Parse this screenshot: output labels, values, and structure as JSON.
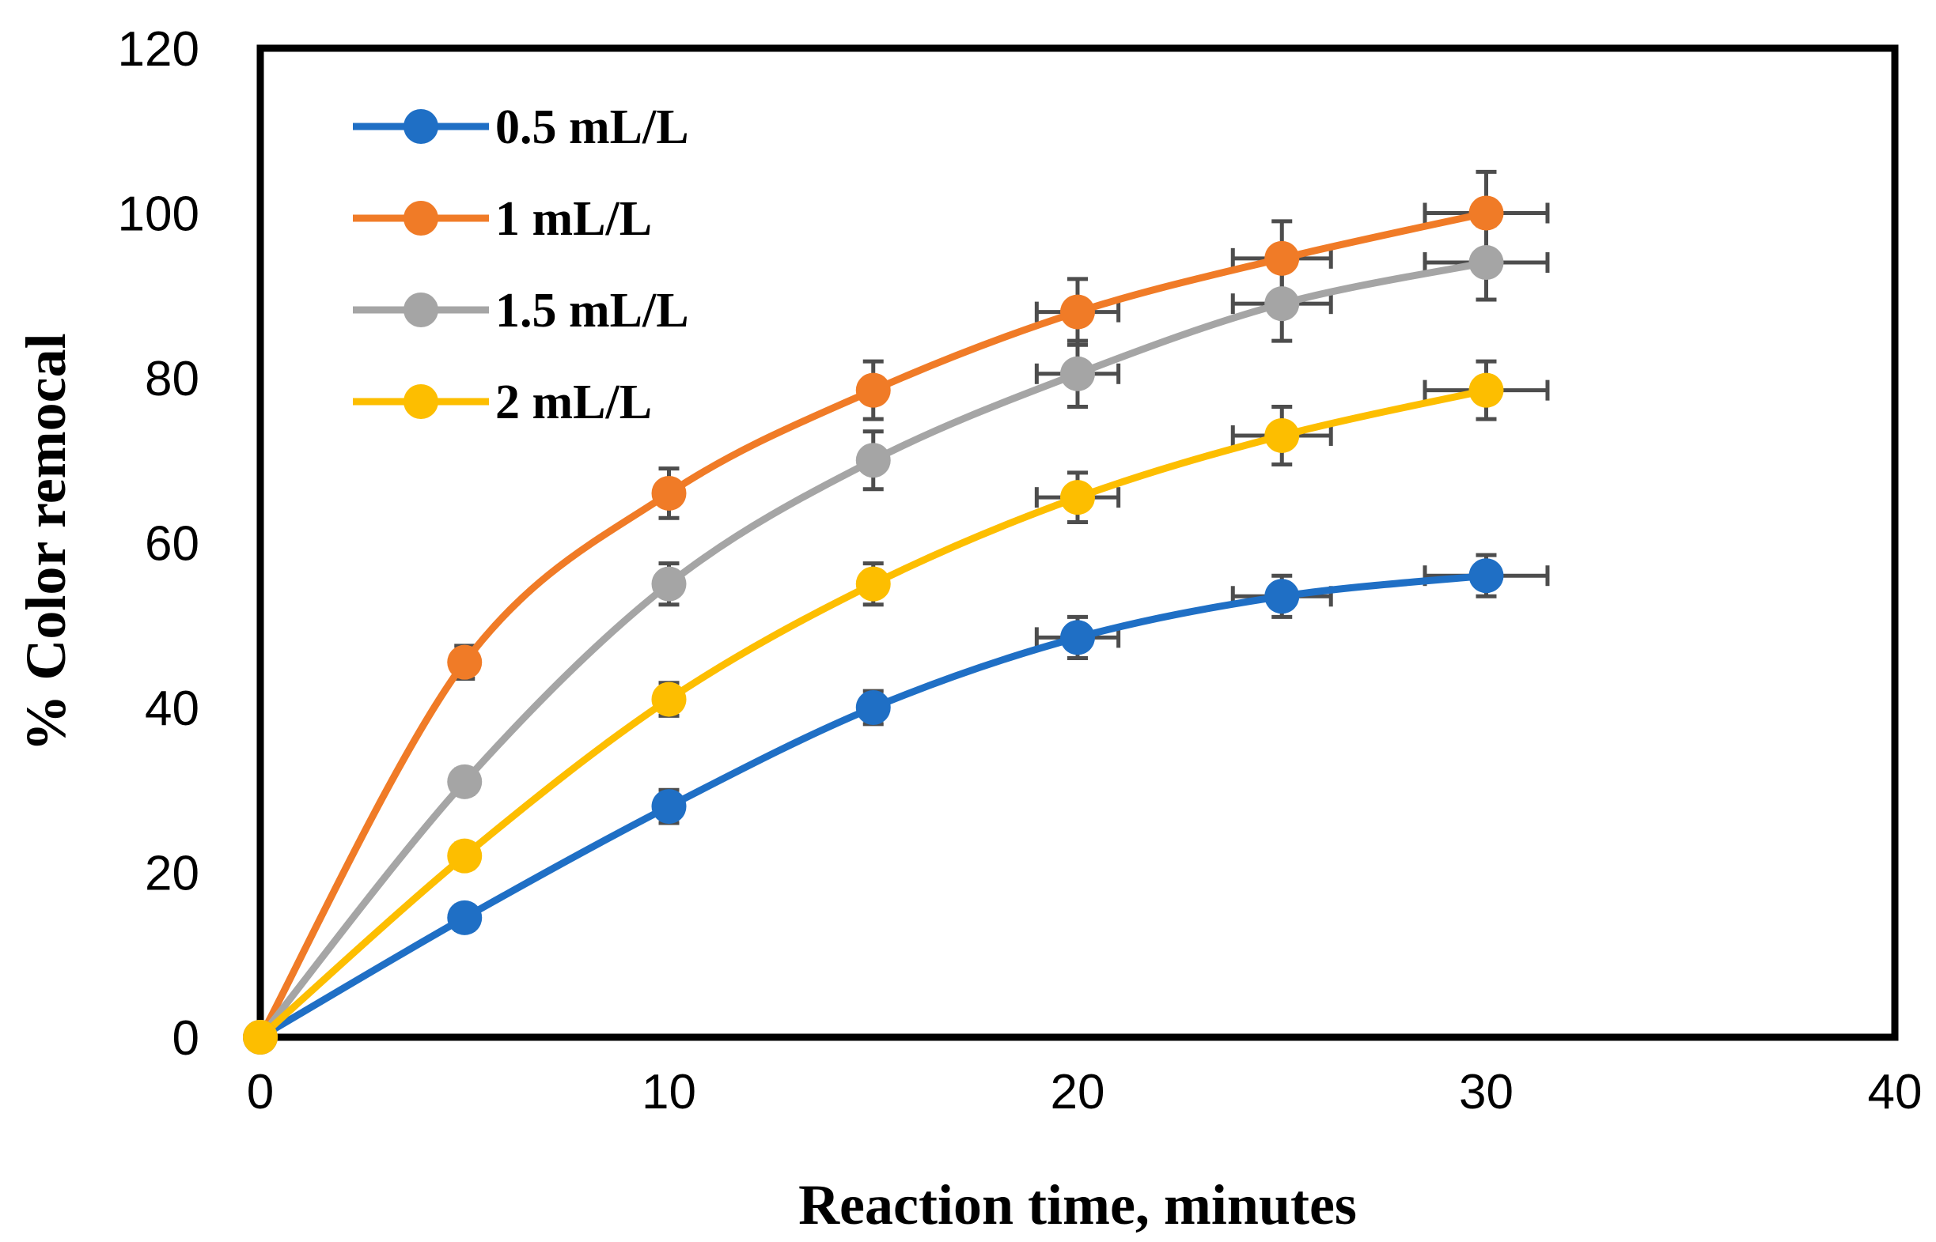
{
  "chart_data": {
    "type": "line",
    "xlabel": "Reaction time, minutes",
    "ylabel": "% Color remocal",
    "xlim": [
      0,
      40
    ],
    "ylim": [
      0,
      120
    ],
    "xticks": [
      0,
      10,
      20,
      30,
      40
    ],
    "yticks": [
      0,
      20,
      40,
      60,
      80,
      100,
      120
    ],
    "grid": false,
    "legend_position": "top-left",
    "smooth": true,
    "x": [
      0,
      5,
      10,
      15,
      20,
      25,
      30
    ],
    "series": [
      {
        "name": "0.5 mL/L",
        "color": "#1f6fc5",
        "values": [
          0,
          14.5,
          28,
          40,
          48.5,
          53.5,
          56
        ],
        "y_error": [
          0,
          1.5,
          2,
          2,
          2.5,
          2.5,
          2.5
        ],
        "x_error": [
          0,
          0,
          0,
          0,
          1,
          1.2,
          1.5
        ]
      },
      {
        "name": "1 mL/L",
        "color": "#f07b27",
        "values": [
          0,
          45.5,
          66,
          78.5,
          88,
          94.5,
          100
        ],
        "y_error": [
          0,
          2,
          3,
          3.5,
          4,
          4.5,
          5
        ],
        "x_error": [
          0,
          0,
          0,
          0,
          1,
          1.2,
          1.5
        ]
      },
      {
        "name": "1.5 mL/L",
        "color": "#a5a5a5",
        "values": [
          0,
          31,
          55,
          70,
          80.5,
          89,
          94
        ],
        "y_error": [
          0,
          1.5,
          2.5,
          3.5,
          4,
          4.5,
          4.5
        ],
        "x_error": [
          0,
          0,
          0,
          0,
          1,
          1.2,
          1.5
        ]
      },
      {
        "name": "2 mL/L",
        "color": "#fdbe00",
        "values": [
          0,
          22,
          41,
          55,
          65.5,
          73,
          78.5
        ],
        "y_error": [
          0,
          1.5,
          2,
          2.5,
          3,
          3.5,
          3.5
        ],
        "x_error": [
          0,
          0,
          0,
          0,
          1,
          1.2,
          1.5
        ]
      }
    ]
  }
}
